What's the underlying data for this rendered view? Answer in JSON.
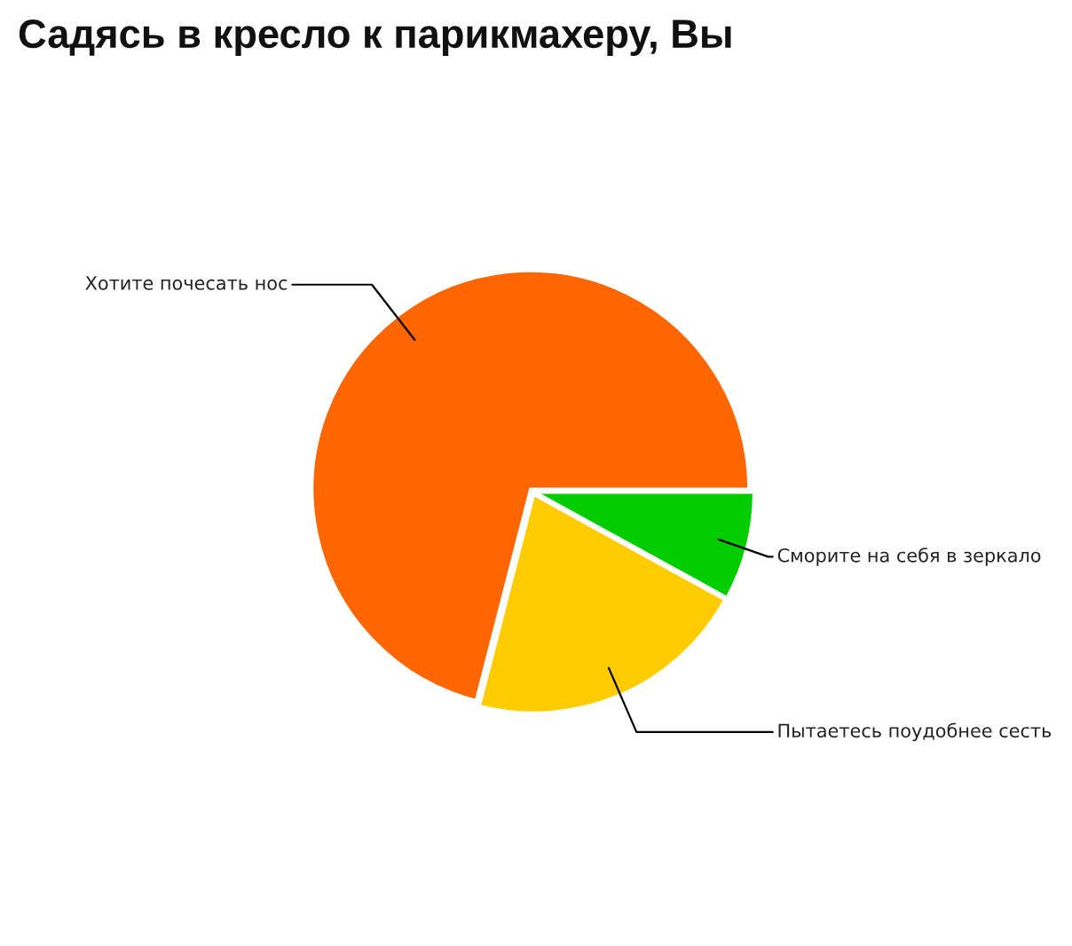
{
  "chart_data": {
    "type": "pie",
    "title": "Садясь в кресло к парикмахеру, Вы",
    "categories": [
      "Хотите почесать нос",
      "Пытаетесь поудобнее сесть",
      "Сморите на себя в зеркало"
    ],
    "values": [
      71,
      21,
      8
    ],
    "colors": [
      "#ff6600",
      "#ffcc00",
      "#00cc00"
    ]
  }
}
